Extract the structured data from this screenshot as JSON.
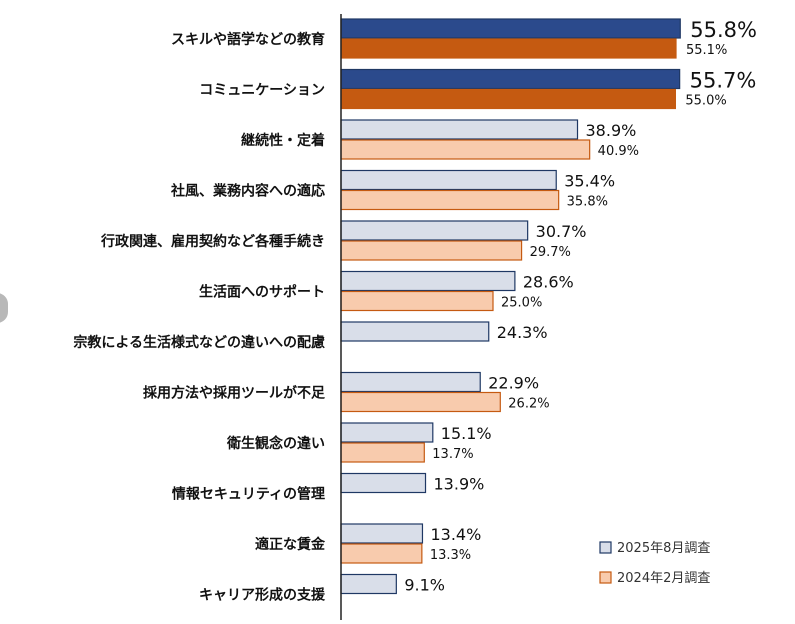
{
  "chart_data": {
    "type": "bar",
    "orientation": "horizontal",
    "title": "",
    "xlabel": "",
    "ylabel": "",
    "xlim": [
      0,
      60
    ],
    "grid": false,
    "legend_position": "bottom-right",
    "categories": [
      "スキルや語学などの教育",
      "コミュニケーション",
      "継続性・定着",
      "社風、業務内容への適応",
      "行政関連、雇用契約など各種手続き",
      "生活面へのサポート",
      "宗教による生活様式などの違いへの配慮",
      "採用方法や採用ツールが不足",
      "衛生観念の違い",
      "情報セキュリティの管理",
      "適正な賃金",
      "キャリア形成の支援"
    ],
    "series": [
      {
        "name": "2025年8月調査",
        "values": [
          55.8,
          55.7,
          38.9,
          35.4,
          30.7,
          28.6,
          24.3,
          22.9,
          15.1,
          13.9,
          13.4,
          9.1
        ],
        "labels": [
          "55.8%",
          "55.7%",
          "38.9%",
          "35.4%",
          "30.7%",
          "28.6%",
          "24.3%",
          "22.9%",
          "15.1%",
          "13.9%",
          "13.4%",
          "9.1%"
        ]
      },
      {
        "name": "2024年2月調査",
        "values": [
          55.1,
          55.0,
          40.9,
          35.8,
          29.7,
          25.0,
          null,
          26.2,
          13.7,
          null,
          13.3,
          null
        ],
        "labels": [
          "55.1%",
          "55.0%",
          "40.9%",
          "35.8%",
          "29.7%",
          "25.0%",
          "",
          "26.2%",
          "13.7%",
          "",
          "13.3%",
          ""
        ]
      }
    ],
    "colors": {
      "highlight_2025": "#2B4A8C",
      "highlight_2024": "#C55A11",
      "normal_2025": "#D9DEE9",
      "normal_2024": "#F8CBAD",
      "border_2025": "#1F3864",
      "border_2024": "#C55A11"
    },
    "highlighted_count": 2
  }
}
